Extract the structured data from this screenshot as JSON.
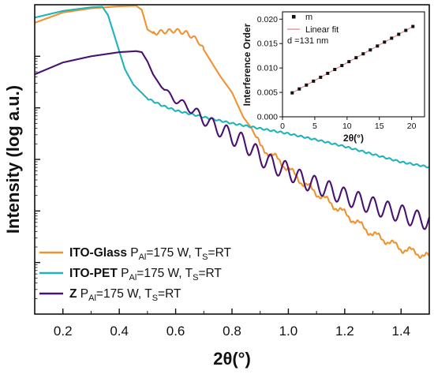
{
  "chart_data": [
    {
      "type": "line",
      "xlabel": "2θ(°)",
      "ylabel": "Intensity (log a.u.)",
      "xlim": [
        0.1,
        1.5
      ],
      "xticks": [
        0.2,
        0.4,
        0.6,
        0.8,
        1.0,
        1.2,
        1.4
      ],
      "xtick_labels": [
        "0.2",
        "0.4",
        "0.6",
        "0.8",
        "1.0",
        "1.2",
        "1.4"
      ],
      "y_scale": "log",
      "y_decades": 6,
      "y_ticks_labeled": false,
      "legend_position": "bottom-left",
      "series": [
        {
          "name": "ITO-Glass",
          "legend_rest": " P",
          "legend_sub1": "Al",
          "legend_mid": "=175 W, T",
          "legend_sub2": "S",
          "legend_end": "=RT",
          "color": "#f0922f",
          "x": [
            0.1,
            0.2,
            0.3,
            0.4,
            0.46,
            0.48,
            0.5,
            0.52,
            0.56,
            0.6,
            0.64,
            0.68,
            0.72,
            0.76,
            0.8,
            0.84,
            0.87,
            0.9,
            0.95,
            1.0,
            1.05,
            1.1,
            1.15,
            1.2,
            1.25,
            1.3,
            1.35,
            1.4,
            1.45,
            1.5
          ],
          "y": [
            5.65,
            5.85,
            5.93,
            5.97,
            5.98,
            5.9,
            5.52,
            5.45,
            5.48,
            5.5,
            5.45,
            5.3,
            4.95,
            4.6,
            4.3,
            3.82,
            3.6,
            3.25,
            3.05,
            2.82,
            2.55,
            2.35,
            2.15,
            1.95,
            1.75,
            1.55,
            1.42,
            1.27,
            1.2,
            1.1
          ]
        },
        {
          "name": "ITO-PET",
          "legend_rest": " P",
          "legend_sub1": "Al",
          "legend_mid": "=175 W,  T",
          "legend_sub2": "S",
          "legend_end": "=RT",
          "color": "#1fb3ba",
          "x": [
            0.1,
            0.2,
            0.3,
            0.34,
            0.36,
            0.38,
            0.4,
            0.42,
            0.45,
            0.5,
            0.55,
            0.6,
            0.7,
            0.8,
            0.9,
            1.0,
            1.1,
            1.2,
            1.3,
            1.4,
            1.5
          ],
          "y": [
            5.75,
            5.88,
            5.95,
            5.96,
            5.8,
            5.45,
            5.1,
            4.75,
            4.45,
            4.18,
            4.05,
            3.95,
            3.82,
            3.7,
            3.6,
            3.5,
            3.38,
            3.25,
            3.1,
            2.95,
            2.85
          ]
        },
        {
          "name": "Z",
          "legend_rest": " P",
          "legend_sub1": "Al",
          "legend_mid": "=175 W, T",
          "legend_sub2": "S",
          "legend_end": "=RT",
          "color": "#4a1270",
          "x": [
            0.1,
            0.2,
            0.3,
            0.4,
            0.46,
            0.48,
            0.5,
            0.52,
            0.55,
            0.6,
            0.65,
            0.7,
            0.75,
            0.8,
            0.85,
            0.9,
            0.95,
            1.0,
            1.05,
            1.1,
            1.15,
            1.2,
            1.25,
            1.3,
            1.35,
            1.4,
            1.45,
            1.5
          ],
          "y": [
            4.65,
            4.88,
            5.0,
            5.08,
            5.1,
            5.08,
            4.9,
            4.65,
            4.4,
            4.15,
            4.0,
            3.78,
            3.6,
            3.45,
            3.3,
            3.05,
            2.88,
            2.78,
            2.6,
            2.5,
            2.4,
            2.28,
            2.2,
            2.1,
            2.02,
            1.95,
            1.85,
            1.8
          ]
        }
      ]
    },
    {
      "type": "scatter",
      "title": "",
      "xlabel": "2θ(°)",
      "ylabel": "Interference Order",
      "xlim": [
        0,
        22
      ],
      "ylim": [
        0,
        0.0215
      ],
      "xticks": [
        0,
        5,
        10,
        15,
        20
      ],
      "xtick_labels": [
        "0",
        "5",
        "10",
        "15",
        "20"
      ],
      "yticks": [
        0,
        0.005,
        0.01,
        0.015,
        0.02
      ],
      "ytick_labels": [
        "0.000",
        "0.005",
        "0.010",
        "0.015",
        "0.020"
      ],
      "legend_position": "top-left",
      "series": [
        {
          "name": "m",
          "color": "#111111",
          "x": [
            1.5,
            2.6,
            3.7,
            4.8,
            5.9,
            7.0,
            8.1,
            9.2,
            10.3,
            11.4,
            12.5,
            13.6,
            14.7,
            15.8,
            16.9,
            18.0,
            19.1,
            20.2
          ],
          "y": [
            0.0049,
            0.0057,
            0.0065,
            0.0073,
            0.0081,
            0.0089,
            0.0097,
            0.0105,
            0.0113,
            0.0121,
            0.0129,
            0.0137,
            0.0145,
            0.0153,
            0.0161,
            0.0169,
            0.0177,
            0.0185
          ]
        },
        {
          "name": "Linear fit",
          "color": "#e87a7a",
          "x": [
            1.5,
            20.2
          ],
          "y": [
            0.0049,
            0.0185
          ]
        }
      ],
      "annotation": "d =131 nm"
    }
  ]
}
